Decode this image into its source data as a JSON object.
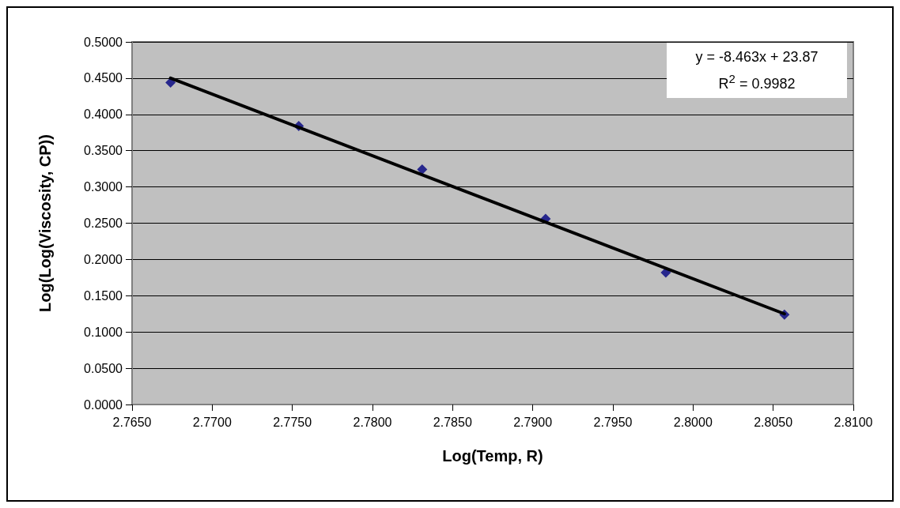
{
  "chart_data": {
    "type": "scatter",
    "xlabel": "Log(Temp, R)",
    "ylabel": "Log(Log(Viscosity, CP))",
    "series": [
      {
        "color": "#000080",
        "marker": "diamond",
        "x": [
          2.7674,
          2.7754,
          2.7831,
          2.7908,
          2.7983,
          2.8057
        ],
        "values": [
          0.444,
          0.384,
          0.324,
          0.256,
          0.182,
          0.124
        ]
      },
      {
        "type": "line",
        "color": "#000000",
        "marker": "none",
        "line_style": "solid",
        "x": [
          2.7674,
          2.8057
        ],
        "values": [
          0.45,
          0.125
        ]
      }
    ],
    "xlim": [
      2.765,
      2.81
    ],
    "xticks": [
      {
        "value": 2.765,
        "label": "2.7650"
      },
      {
        "value": 2.77,
        "label": "2.7700"
      },
      {
        "value": 2.775,
        "label": "2.7750"
      },
      {
        "value": 2.78,
        "label": "2.7800"
      },
      {
        "value": 2.785,
        "label": "2.7850"
      },
      {
        "value": 2.79,
        "label": "2.7900"
      },
      {
        "value": 2.795,
        "label": "2.7950"
      },
      {
        "value": 2.8,
        "label": "2.8000"
      },
      {
        "value": 2.805,
        "label": "2.8050"
      },
      {
        "value": 2.81,
        "label": "2.8100"
      }
    ],
    "ylim": [
      0,
      0.5
    ],
    "yticks": [
      {
        "value": 0,
        "label": "0.0000"
      },
      {
        "value": 0.05,
        "label": "0.0500"
      },
      {
        "value": 0.1,
        "label": "0.1000"
      },
      {
        "value": 0.15,
        "label": "0.1500"
      },
      {
        "value": 0.2,
        "label": "0.2000"
      },
      {
        "value": 0.25,
        "label": "0.2500"
      },
      {
        "value": 0.3,
        "label": "0.3000"
      },
      {
        "value": 0.35,
        "label": "0.3500"
      },
      {
        "value": 0.4,
        "label": "0.4000"
      },
      {
        "value": 0.45,
        "label": "0.4500"
      },
      {
        "value": 0.5,
        "label": "0.5000"
      }
    ],
    "annotations": [
      "y = -8.463x + 23.87",
      "R$^{2}$ = 0.9982"
    ],
    "grid": "y"
  }
}
